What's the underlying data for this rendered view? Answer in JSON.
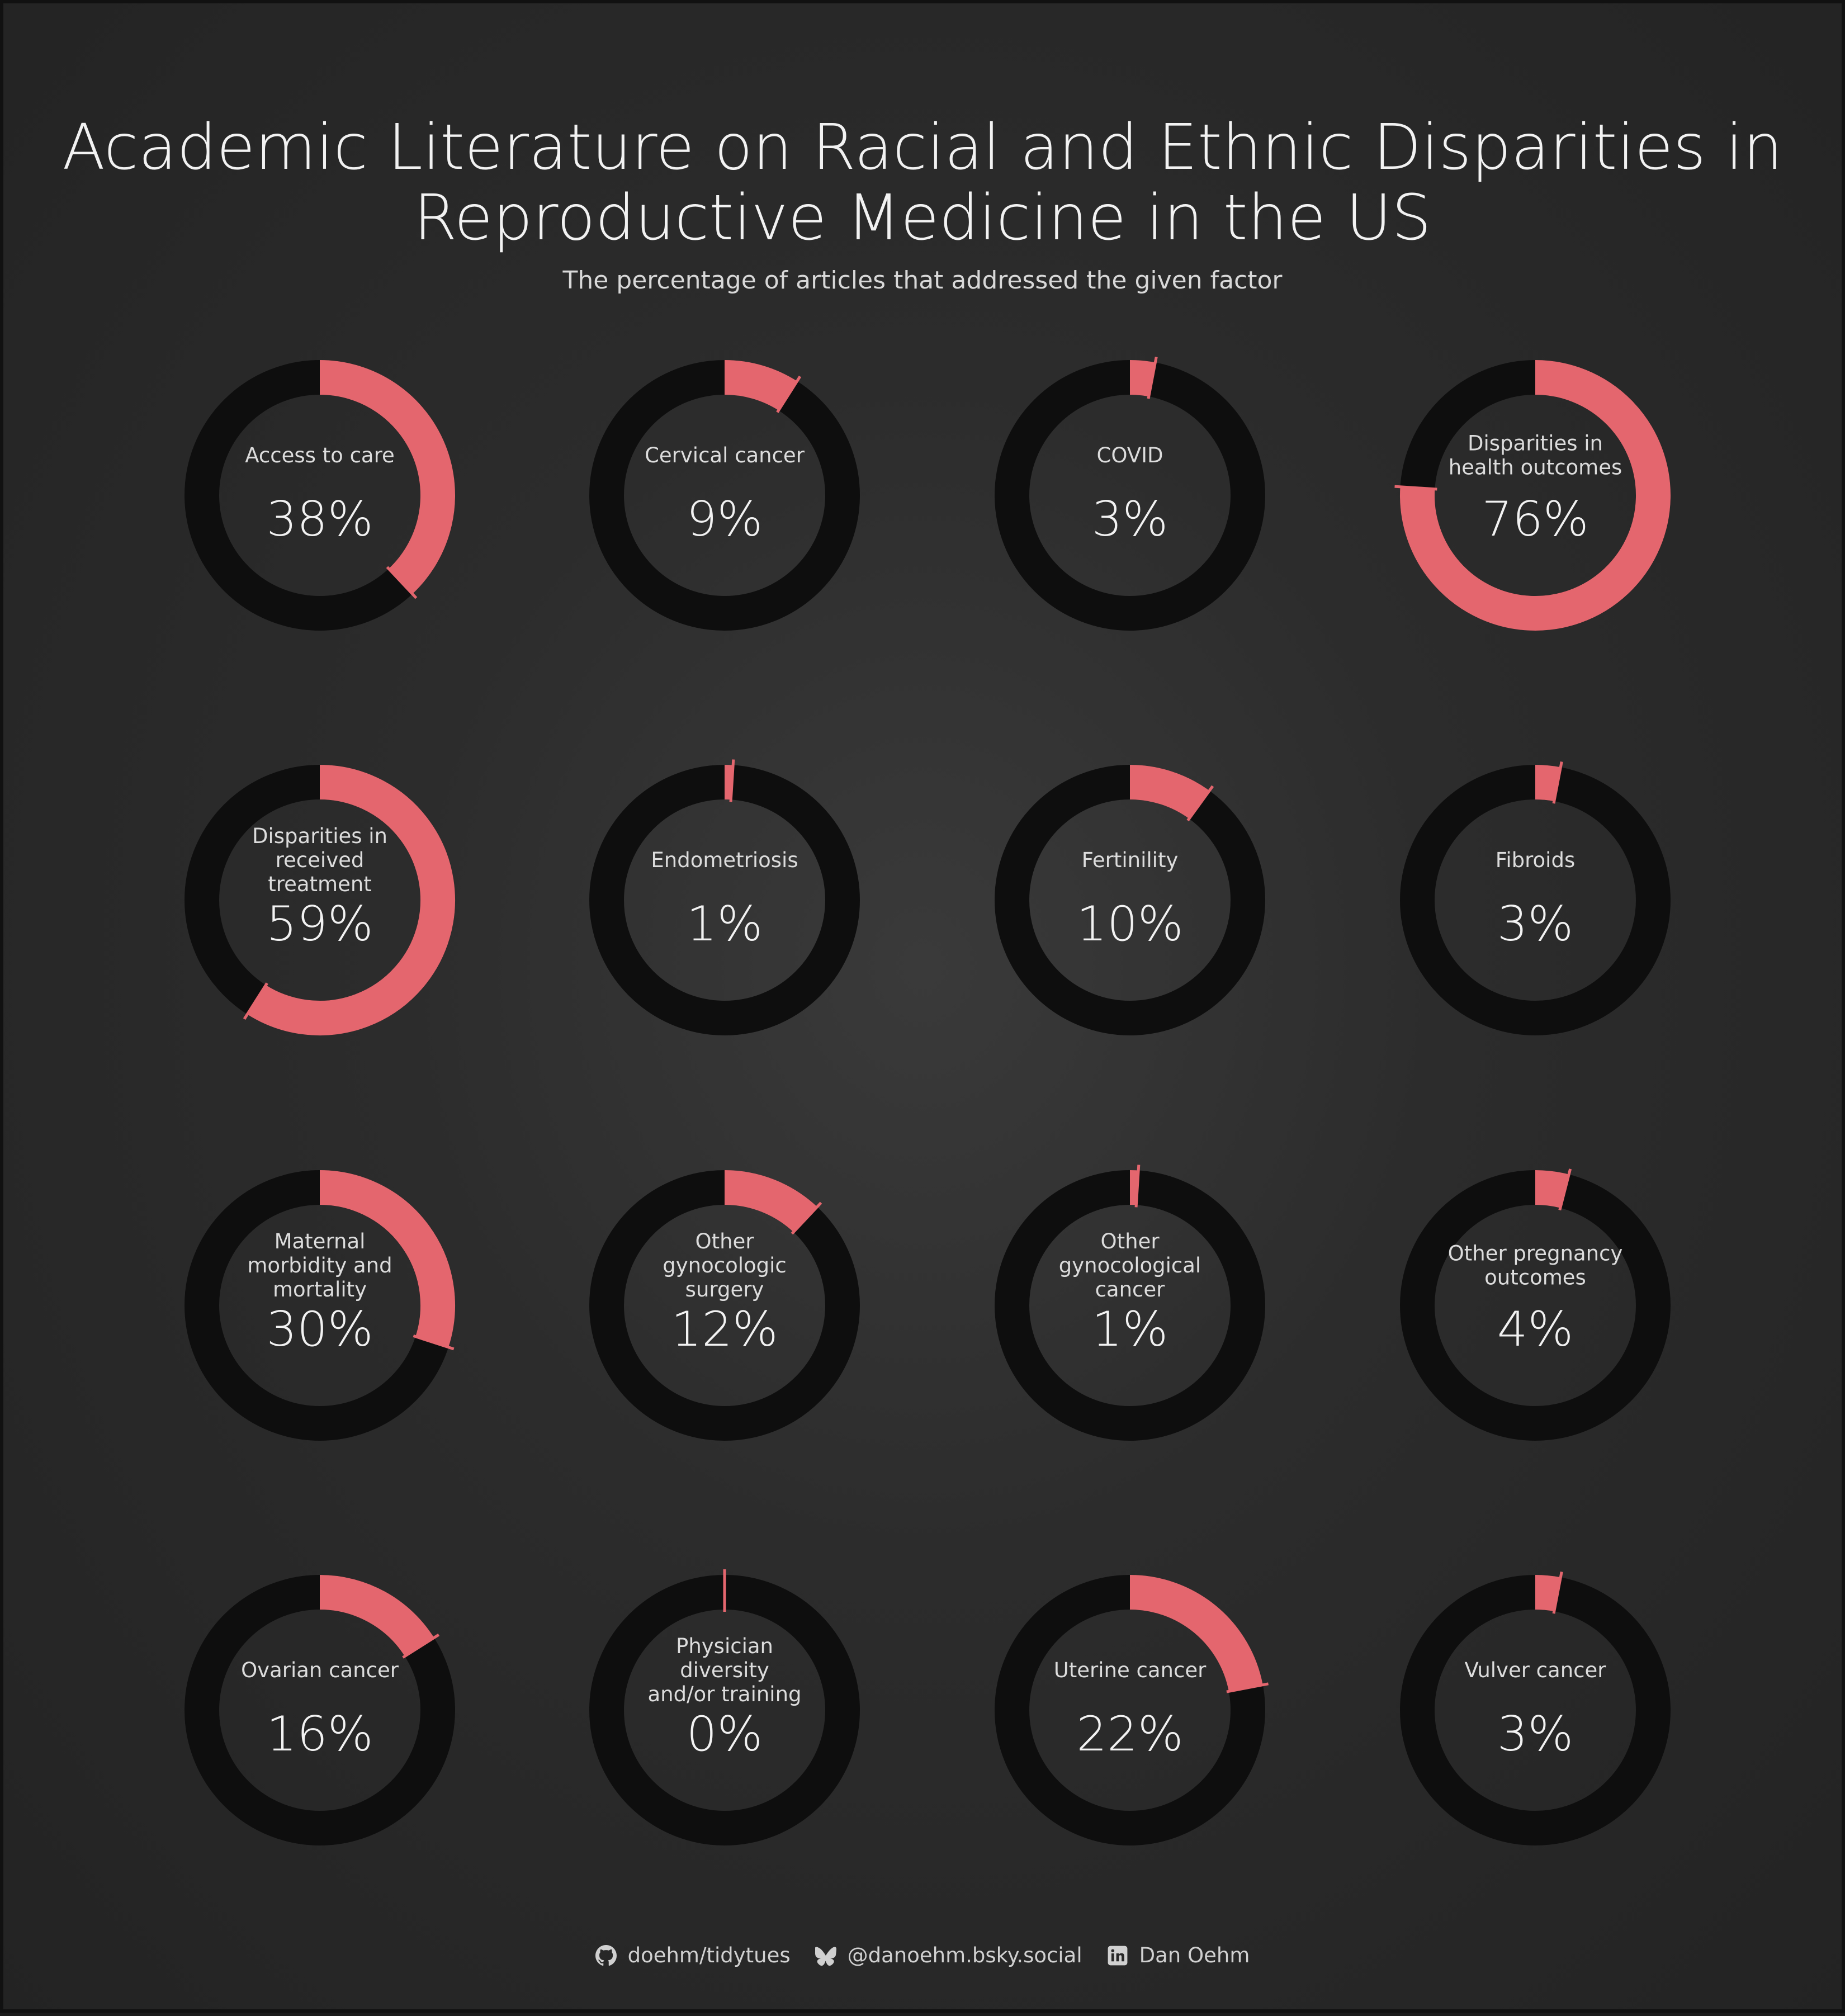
{
  "title_lines": [
    "Academic Literature on Racial and Ethnic Disparities in",
    "Reproductive Medicine in the US"
  ],
  "subtitle": "The percentage of articles that addressed the given factor",
  "colors": {
    "accent": "#e4666e",
    "ring_track": "#0e0e0e",
    "text": "#f2f2f2"
  },
  "chart_data": {
    "type": "donut-grid",
    "value_unit": "%",
    "items": [
      {
        "label": "Access to care",
        "value": 38,
        "display": "38%"
      },
      {
        "label": "Cervical cancer",
        "value": 9,
        "display": "9%"
      },
      {
        "label": "COVID",
        "value": 3,
        "display": "3%"
      },
      {
        "label": "Disparities in health outcomes",
        "value": 76,
        "display": "76%"
      },
      {
        "label": "Disparities in received treatment",
        "value": 59,
        "display": "59%"
      },
      {
        "label": "Endometriosis",
        "value": 1,
        "display": "1%"
      },
      {
        "label": "Fertinility",
        "value": 10,
        "display": "10%"
      },
      {
        "label": "Fibroids",
        "value": 3,
        "display": "3%"
      },
      {
        "label": "Maternal morbidity and mortality",
        "value": 30,
        "display": "30%"
      },
      {
        "label": "Other gynocologic surgery",
        "value": 12,
        "display": "12%"
      },
      {
        "label": "Other gynocological cancer",
        "value": 1,
        "display": "1%"
      },
      {
        "label": "Other pregnancy outcomes",
        "value": 4,
        "display": "4%"
      },
      {
        "label": "Ovarian cancer",
        "value": 16,
        "display": "16%"
      },
      {
        "label": "Physician diversity and/or training",
        "value": 0,
        "display": "0%"
      },
      {
        "label": "Uterine cancer",
        "value": 22,
        "display": "22%"
      },
      {
        "label": "Vulver cancer",
        "value": 3,
        "display": "3%"
      }
    ]
  },
  "footer": {
    "github": {
      "icon": "github-icon",
      "text": "doehm/tidytues"
    },
    "bluesky": {
      "icon": "butterfly-icon",
      "text": "@danoehm.bsky.social"
    },
    "linkedin": {
      "icon": "linkedin-icon",
      "text": "Dan Oehm"
    }
  }
}
